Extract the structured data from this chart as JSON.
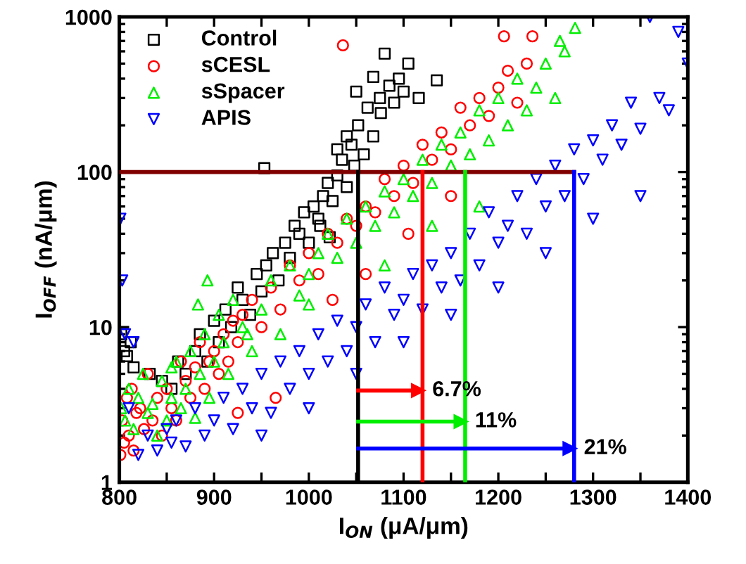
{
  "chart_data": {
    "type": "scatter",
    "xlabel": "I$_{ON}$ (μA/μm)",
    "ylabel": "I$_{OFF}$ (nA/μm)",
    "log": "y",
    "xlim": [
      800,
      1400
    ],
    "ylim": [
      1,
      1000
    ],
    "xticks": [
      800,
      {
        "value": 850,
        "label": null
      },
      900,
      {
        "value": 950,
        "label": null
      },
      1000,
      {
        "value": 1050,
        "label": null
      },
      1100,
      {
        "value": 1150,
        "label": null
      },
      1200,
      {
        "value": 1250,
        "label": null
      },
      1300,
      {
        "value": 1350,
        "label": null
      },
      1400
    ],
    "yticks": [
      1,
      10,
      100,
      1000
    ],
    "legend": "top left",
    "grid": false,
    "series": [
      {
        "name": "Control",
        "color": "#000000",
        "marker": "square",
        "x": [
          802,
          805,
          808,
          812,
          815,
          832,
          845,
          855,
          862,
          870,
          880,
          885,
          893,
          900,
          905,
          912,
          918,
          925,
          930,
          938,
          945,
          950,
          953,
          955,
          962,
          968,
          975,
          980,
          985,
          990,
          995,
          1000,
          1005,
          1010,
          1015,
          1020,
          1025,
          1030,
          1035,
          1040,
          1045,
          1048,
          1052,
          1058,
          1062,
          1068,
          1075,
          1076,
          1080,
          1085,
          1090,
          1095,
          1100,
          1105,
          1116,
          1135,
          1040,
          1022,
          1050,
          1068,
          1030,
          1012
        ],
        "values": [
          9,
          7,
          6.5,
          8,
          5.5,
          5,
          4.5,
          4,
          6,
          5,
          7,
          9,
          6,
          11,
          8,
          13,
          10,
          18,
          15,
          12,
          22,
          17,
          106,
          25,
          30,
          20,
          35,
          28,
          45,
          40,
          55,
          35,
          60,
          50,
          70,
          85,
          65,
          95,
          120,
          80,
          150,
          110,
          200,
          130,
          260,
          170,
          300,
          240,
          580,
          360,
          280,
          400,
          330,
          500,
          300,
          390,
          170,
          38,
          330,
          410,
          140,
          45
        ]
      },
      {
        "name": "sCESL",
        "color": "#ff0000",
        "marker": "circle",
        "x": [
          801,
          803,
          805,
          808,
          810,
          813,
          815,
          818,
          822,
          826,
          830,
          835,
          840,
          845,
          850,
          855,
          860,
          865,
          870,
          875,
          880,
          885,
          890,
          895,
          900,
          905,
          910,
          915,
          920,
          925,
          930,
          940,
          950,
          960,
          970,
          980,
          990,
          1000,
          1010,
          1020,
          1030,
          1036,
          1040,
          1050,
          1060,
          1070,
          1080,
          1090,
          1100,
          1110,
          1120,
          1130,
          1140,
          1150,
          1160,
          1170,
          1180,
          1190,
          1200,
          1206,
          1210,
          1220,
          1230,
          1236,
          965,
          925,
          1025,
          1060,
          1105,
          1150
        ],
        "values": [
          1.5,
          2.5,
          1.8,
          3.5,
          2,
          4,
          1.6,
          2.8,
          3,
          2.2,
          5,
          2.5,
          3.5,
          2,
          4,
          3,
          2.5,
          6,
          4.5,
          3.5,
          5.5,
          8,
          4,
          6,
          7,
          5,
          9,
          6,
          11,
          8,
          12,
          15,
          10,
          18,
          13,
          25,
          20,
          30,
          22,
          40,
          35,
          656,
          50,
          45,
          60,
          55,
          90,
          70,
          110,
          85,
          150,
          120,
          180,
          140,
          260,
          200,
          300,
          230,
          350,
          750,
          450,
          280,
          500,
          750,
          3.5,
          2.8,
          15,
          22,
          40,
          70
        ]
      },
      {
        "name": "sSpacer",
        "color": "#00ee00",
        "marker": "triangle",
        "x": [
          802,
          806,
          810,
          815,
          820,
          825,
          830,
          835,
          840,
          845,
          850,
          855,
          860,
          865,
          870,
          875,
          880,
          885,
          890,
          895,
          900,
          905,
          910,
          915,
          920,
          930,
          940,
          950,
          960,
          970,
          980,
          990,
          1000,
          1010,
          1020,
          1030,
          1040,
          1050,
          1060,
          1070,
          1080,
          1090,
          1100,
          1110,
          1120,
          1130,
          1140,
          1150,
          1160,
          1170,
          1180,
          1190,
          1200,
          1210,
          1220,
          1230,
          1240,
          1250,
          1260,
          1270,
          1281,
          1265,
          893,
          883,
          855,
          935,
          1000,
          1080,
          1130,
          1180
        ],
        "values": [
          3,
          2.5,
          4,
          2.2,
          3.5,
          5,
          2.8,
          3.2,
          2,
          4.5,
          2.5,
          3.5,
          6,
          3,
          4,
          7,
          2.6,
          5,
          9,
          3.5,
          6,
          12,
          8,
          5,
          15,
          10,
          7,
          13,
          20,
          9,
          25,
          16,
          22,
          30,
          40,
          28,
          50,
          35,
          60,
          45,
          75,
          55,
          90,
          70,
          120,
          85,
          150,
          110,
          180,
          130,
          250,
          160,
          300,
          200,
          400,
          250,
          350,
          500,
          300,
          600,
          850,
          700,
          20,
          14,
          5.5,
          9,
          14,
          25,
          45,
          60
        ]
      },
      {
        "name": "APIS",
        "color": "#0000ff",
        "marker": "triangle_down",
        "x": [
          801,
          803,
          806,
          810,
          815,
          820,
          830,
          840,
          850,
          855,
          860,
          870,
          880,
          890,
          900,
          910,
          920,
          930,
          940,
          950,
          960,
          970,
          980,
          990,
          1000,
          1010,
          1020,
          1030,
          1040,
          1050,
          1060,
          1070,
          1080,
          1090,
          1100,
          1110,
          1120,
          1130,
          1140,
          1150,
          1160,
          1170,
          1180,
          1190,
          1200,
          1210,
          1220,
          1230,
          1240,
          1250,
          1260,
          1270,
          1280,
          1290,
          1300,
          1310,
          1320,
          1330,
          1340,
          1350,
          1360,
          1370,
          1380,
          1390,
          1400,
          1100,
          1150,
          1200,
          1250,
          1300,
          1350,
          1050,
          950,
          1000
        ],
        "values": [
          50,
          20,
          9,
          3,
          8,
          1.5,
          2,
          1.6,
          2.2,
          1.8,
          2.5,
          1.7,
          3,
          2,
          2.5,
          3.5,
          2.2,
          4,
          3,
          5,
          2.8,
          6,
          4,
          7,
          5,
          9,
          6,
          11,
          7,
          10,
          14,
          8,
          18,
          12,
          15,
          22,
          13,
          25,
          18,
          30,
          20,
          40,
          25,
          55,
          35,
          45,
          70,
          40,
          90,
          60,
          110,
          70,
          140,
          90,
          160,
          120,
          200,
          150,
          280,
          190,
          1000,
          300,
          250,
          800,
          500,
          8,
          12,
          18,
          30,
          50,
          70,
          5,
          2,
          3
        ]
      },
      {
        "type": "line",
        "color": "#800000",
        "x": [
          800,
          1280
        ],
        "values": [
          100,
          100
        ]
      },
      {
        "type": "line",
        "color": "#000000",
        "x": [
          1052,
          1052
        ],
        "values": [
          1,
          100
        ]
      },
      {
        "type": "line",
        "color": "#ff0000",
        "x": [
          1120,
          1120
        ],
        "values": [
          1,
          100
        ]
      },
      {
        "type": "line",
        "color": "#00ee00",
        "x": [
          1165,
          1165
        ],
        "values": [
          1,
          100
        ]
      },
      {
        "type": "line",
        "color": "#0000ff",
        "x": [
          1280,
          1280
        ],
        "values": [
          1,
          100
        ]
      },
      {
        "type": "line",
        "color": "#ff0000",
        "marker": "triangle",
        "x": [
          1052,
          1116
        ],
        "values": [
          3.9,
          3.9
        ]
      },
      {
        "type": "line",
        "color": "#00ee00",
        "marker": "triangle",
        "x": [
          1052,
          1161
        ],
        "values": [
          2.46,
          2.46
        ]
      },
      {
        "type": "line",
        "color": "#0000ff",
        "marker": "triangle",
        "x": [
          1052,
          1276
        ],
        "values": [
          1.65,
          1.65
        ]
      }
    ],
    "annotations": [
      {
        "text": "6.7%",
        "x": 1122,
        "y": 3.9
      },
      {
        "text": "11%",
        "x": 1167,
        "y": 2.46
      },
      {
        "text": "21%",
        "x": 1282,
        "y": 1.65
      }
    ]
  }
}
